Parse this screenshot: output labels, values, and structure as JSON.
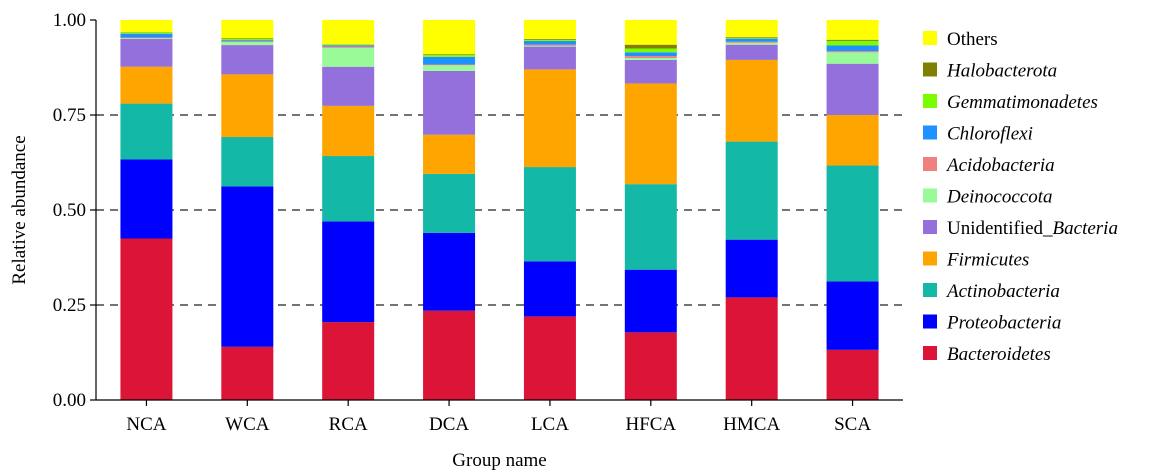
{
  "chart_data": {
    "type": "bar",
    "stacked": true,
    "normalized": true,
    "title": "",
    "xlabel": "Group name",
    "ylabel": "Relative abundance",
    "ylim": [
      0,
      1
    ],
    "yticks": [
      "0.00",
      "0.25",
      "0.50",
      "0.75",
      "1.00"
    ],
    "ytick_values": [
      0,
      0.25,
      0.5,
      0.75,
      1.0
    ],
    "grid": "dashed horizontal at 0.25, 0.50, 0.75",
    "legend_position": "right",
    "categories": [
      "NCA",
      "WCA",
      "RCA",
      "DCA",
      "LCA",
      "HFCA",
      "HMCA",
      "SCA"
    ],
    "series": [
      {
        "name": "Bacteroidetes",
        "italic": true,
        "color": "#DC1437",
        "values": [
          0.425,
          0.14,
          0.205,
          0.235,
          0.22,
          0.178,
          0.27,
          0.132
        ]
      },
      {
        "name": "Proteobacteria",
        "italic": true,
        "color": "#0000FF",
        "values": [
          0.208,
          0.422,
          0.265,
          0.205,
          0.145,
          0.165,
          0.152,
          0.18
        ]
      },
      {
        "name": "Actinobacteria",
        "italic": true,
        "color": "#13B9A6",
        "values": [
          0.147,
          0.13,
          0.172,
          0.155,
          0.248,
          0.225,
          0.258,
          0.305
        ]
      },
      {
        "name": "Firmicutes",
        "italic": true,
        "color": "#FFA500",
        "values": [
          0.097,
          0.165,
          0.132,
          0.103,
          0.257,
          0.265,
          0.215,
          0.133
        ]
      },
      {
        "name": "Unidentified_Bacteria",
        "name_prefix": "Unidentified_",
        "name_italic_part": "Bacteria",
        "color": "#9370DB",
        "values": [
          0.073,
          0.077,
          0.103,
          0.168,
          0.06,
          0.062,
          0.04,
          0.135
        ]
      },
      {
        "name": "Deinococcota",
        "italic": true,
        "color": "#98FB98",
        "values": [
          0.002,
          0.008,
          0.05,
          0.015,
          0.002,
          0.005,
          0.005,
          0.03
        ]
      },
      {
        "name": "Acidobacteria",
        "italic": true,
        "color": "#F08080",
        "values": [
          0.002,
          0.002,
          0.003,
          0.002,
          0.003,
          0.005,
          0.003,
          0.003
        ]
      },
      {
        "name": "Chloroflexi",
        "italic": true,
        "color": "#1E90FF",
        "values": [
          0.01,
          0.003,
          0.003,
          0.02,
          0.01,
          0.01,
          0.008,
          0.015
        ]
      },
      {
        "name": "Gemmatimonadetes",
        "italic": true,
        "color": "#7CFC00",
        "values": [
          0.003,
          0.003,
          0.002,
          0.005,
          0.003,
          0.01,
          0.002,
          0.012
        ]
      },
      {
        "name": "Halobacterota",
        "italic": true,
        "color": "#808000",
        "values": [
          0.001,
          0.002,
          0.001,
          0.002,
          0.002,
          0.01,
          0.002,
          0.003
        ]
      },
      {
        "name": "Others",
        "italic": false,
        "color": "#FFFF00",
        "values": [
          0.032,
          0.048,
          0.064,
          0.09,
          0.05,
          0.065,
          0.045,
          0.052
        ]
      }
    ]
  }
}
